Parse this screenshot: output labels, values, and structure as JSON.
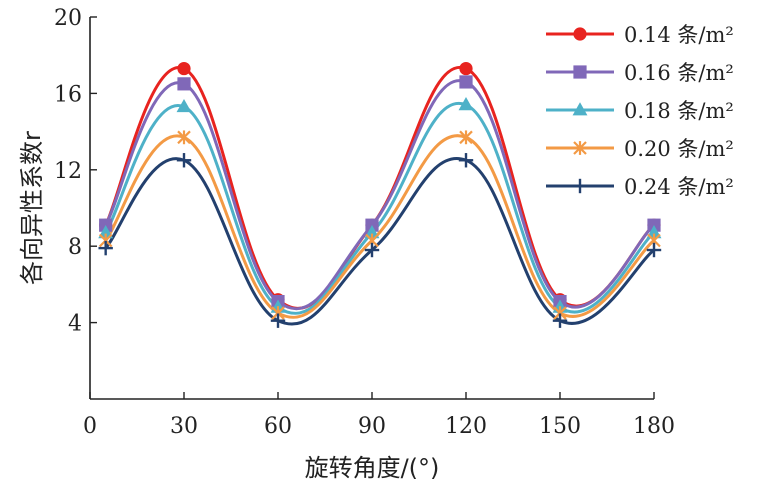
{
  "chart_data": {
    "type": "line",
    "title": "",
    "xlabel": "旋转角度/(°)",
    "ylabel": "各向异性系数r",
    "xlim": [
      0,
      180
    ],
    "ylim": [
      0,
      20
    ],
    "x_ticks": [
      "0",
      "30",
      "60",
      "90",
      "120",
      "150",
      "180"
    ],
    "y_ticks": [
      "4",
      "8",
      "12",
      "16",
      "20"
    ],
    "x": [
      5,
      30,
      60,
      90,
      120,
      150,
      180
    ],
    "grid": false,
    "legend_position": "top-right",
    "series": [
      {
        "name": "0.14 条/m²",
        "color": "#e8231f",
        "marker": "circle",
        "values": [
          9.1,
          17.3,
          5.2,
          9.1,
          17.3,
          5.2,
          9.1
        ]
      },
      {
        "name": "0.16 条/m²",
        "color": "#8068b8",
        "marker": "square",
        "values": [
          9.1,
          16.5,
          5.1,
          9.1,
          16.6,
          5.1,
          9.1
        ]
      },
      {
        "name": "0.18 条/m²",
        "color": "#4eb1c8",
        "marker": "triangle",
        "values": [
          8.7,
          15.3,
          4.8,
          8.7,
          15.4,
          4.8,
          8.7
        ]
      },
      {
        "name": "0.20 条/m²",
        "color": "#f39a45",
        "marker": "x",
        "values": [
          8.3,
          13.7,
          4.5,
          8.3,
          13.7,
          4.5,
          8.3
        ]
      },
      {
        "name": "0.24 条/m²",
        "color": "#23406e",
        "marker": "plus",
        "values": [
          7.9,
          12.5,
          4.1,
          7.8,
          12.5,
          4.1,
          7.8
        ]
      }
    ]
  }
}
